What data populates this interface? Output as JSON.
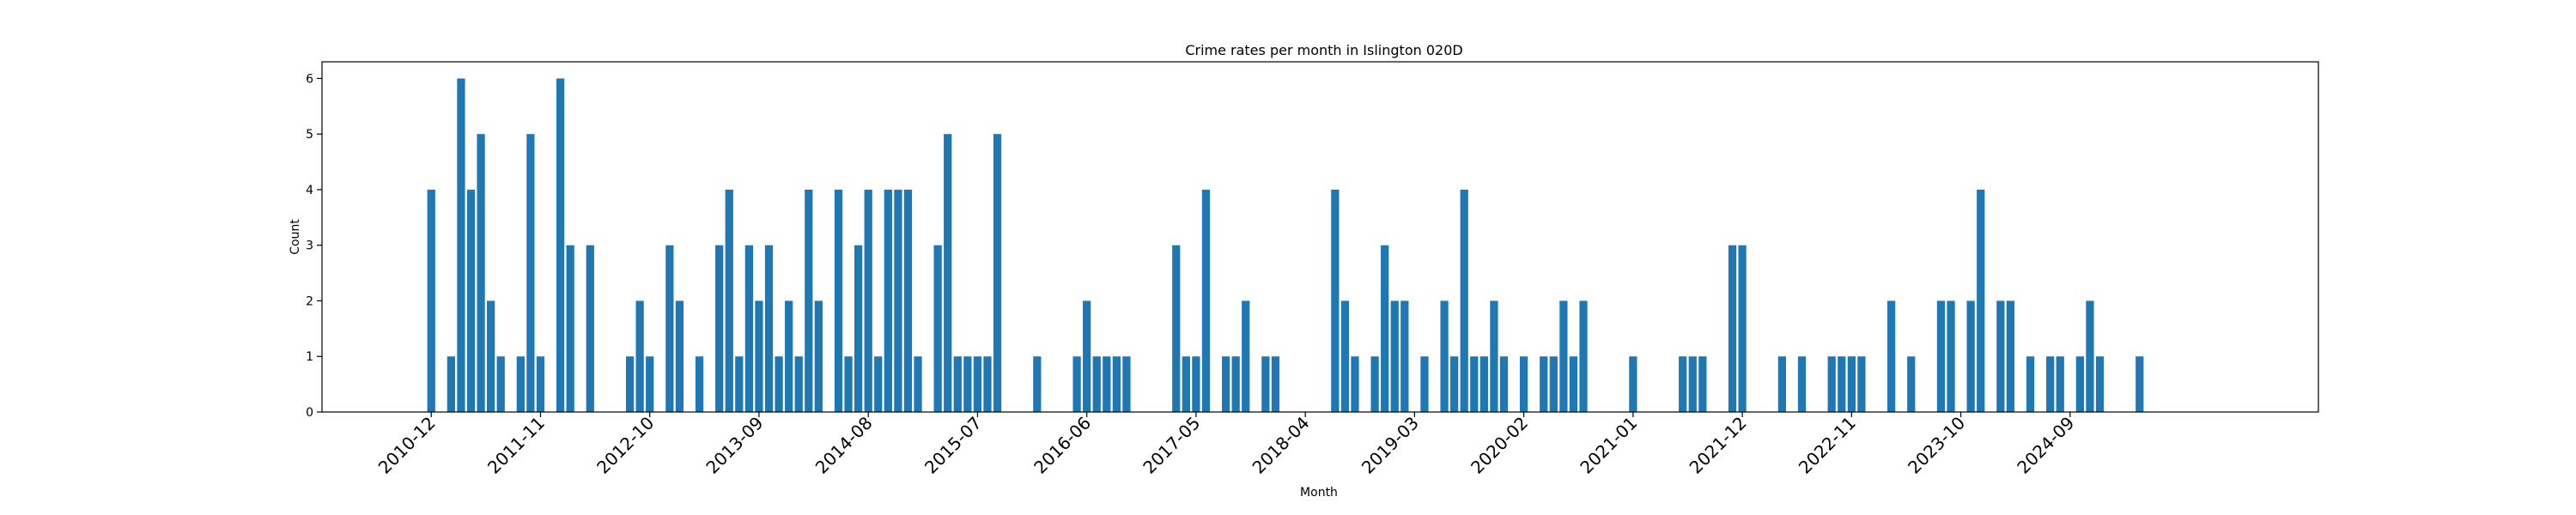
{
  "chart_data": {
    "type": "bar",
    "title": "Crime rates per month in Islington 020D",
    "xlabel": "Month",
    "ylabel": "Count",
    "ylim": [
      0,
      6.3
    ],
    "yticks": [
      0,
      1,
      2,
      3,
      4,
      5,
      6
    ],
    "xlim": [
      "2010-01",
      "2026-10"
    ],
    "xticks": [
      "2010-12",
      "2011-11",
      "2012-10",
      "2013-09",
      "2014-08",
      "2015-07",
      "2016-06",
      "2017-05",
      "2018-04",
      "2019-03",
      "2020-02",
      "2021-01",
      "2021-12",
      "2022-11",
      "2023-10",
      "2024-09"
    ],
    "grid": false,
    "color": "#1f77b4",
    "x": [
      "2010-12",
      "2011-02",
      "2011-03",
      "2011-04",
      "2011-05",
      "2011-06",
      "2011-07",
      "2011-09",
      "2011-10",
      "2011-11",
      "2012-01",
      "2012-02",
      "2012-04",
      "2012-08",
      "2012-09",
      "2012-10",
      "2012-12",
      "2013-01",
      "2013-03",
      "2013-05",
      "2013-06",
      "2013-07",
      "2013-08",
      "2013-09",
      "2013-10",
      "2013-11",
      "2013-12",
      "2014-01",
      "2014-02",
      "2014-03",
      "2014-05",
      "2014-06",
      "2014-07",
      "2014-08",
      "2014-09",
      "2014-10",
      "2014-11",
      "2014-12",
      "2015-01",
      "2015-03",
      "2015-04",
      "2015-05",
      "2015-06",
      "2015-07",
      "2015-08",
      "2015-09",
      "2016-01",
      "2016-05",
      "2016-06",
      "2016-07",
      "2016-08",
      "2016-09",
      "2016-10",
      "2017-03",
      "2017-04",
      "2017-05",
      "2017-06",
      "2017-08",
      "2017-09",
      "2017-10",
      "2017-12",
      "2018-01",
      "2018-07",
      "2018-08",
      "2018-09",
      "2018-11",
      "2018-12",
      "2019-01",
      "2019-02",
      "2019-04",
      "2019-06",
      "2019-07",
      "2019-08",
      "2019-09",
      "2019-10",
      "2019-11",
      "2019-12",
      "2020-02",
      "2020-04",
      "2020-05",
      "2020-06",
      "2020-07",
      "2020-08",
      "2021-01",
      "2021-06",
      "2021-07",
      "2021-08",
      "2021-11",
      "2021-12",
      "2022-04",
      "2022-06",
      "2022-09",
      "2022-10",
      "2022-11",
      "2022-12",
      "2023-03",
      "2023-05",
      "2023-08",
      "2023-09",
      "2023-11",
      "2023-12",
      "2024-02",
      "2024-03",
      "2024-05",
      "2024-07",
      "2024-08",
      "2024-10",
      "2024-11",
      "2024-12",
      "2025-04"
    ],
    "values": [
      4,
      1,
      6,
      4,
      5,
      2,
      1,
      1,
      5,
      1,
      6,
      3,
      3,
      1,
      2,
      1,
      3,
      2,
      1,
      3,
      4,
      1,
      3,
      2,
      3,
      1,
      2,
      1,
      4,
      2,
      4,
      1,
      3,
      4,
      1,
      4,
      4,
      4,
      1,
      3,
      5,
      1,
      1,
      1,
      1,
      5,
      1,
      1,
      2,
      1,
      1,
      1,
      1,
      3,
      1,
      1,
      4,
      1,
      1,
      2,
      1,
      1,
      4,
      2,
      1,
      1,
      3,
      2,
      2,
      1,
      2,
      1,
      4,
      1,
      1,
      2,
      1,
      1,
      1,
      1,
      2,
      1,
      2,
      1,
      1,
      1,
      1,
      3,
      3,
      1,
      1,
      1,
      1,
      1,
      1,
      2,
      1,
      2,
      2,
      2,
      4,
      2,
      2,
      1,
      1,
      1,
      1,
      2,
      1,
      1
    ]
  }
}
